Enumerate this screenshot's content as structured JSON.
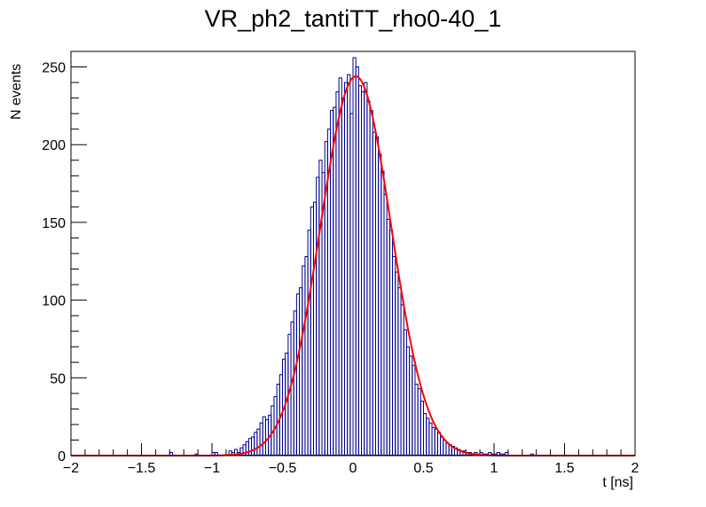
{
  "chart_data": {
    "type": "histogram",
    "title": "VR_ph2_tantiTT_rho0-40_1",
    "xlabel": "t [ns]",
    "ylabel": "N events",
    "xlim": [
      -2,
      2
    ],
    "ylim": [
      0,
      260
    ],
    "x_ticks": [
      -2,
      -1.5,
      -1,
      -0.5,
      0,
      0.5,
      1,
      1.5,
      2
    ],
    "x_tick_labels": [
      "−2",
      "−1.5",
      "−1",
      "−0.5",
      "0",
      "0.5",
      "1",
      "1.5",
      "2"
    ],
    "y_ticks": [
      0,
      50,
      100,
      150,
      200,
      250
    ],
    "y_tick_labels": [
      "0",
      "50",
      "100",
      "150",
      "200",
      "250"
    ],
    "bin_width": 0.02,
    "bin_centers": [
      -1.29,
      -1.11,
      -0.99,
      -0.97,
      -0.87,
      -0.85,
      -0.83,
      -0.81,
      -0.79,
      -0.77,
      -0.75,
      -0.73,
      -0.71,
      -0.69,
      -0.67,
      -0.65,
      -0.63,
      -0.61,
      -0.59,
      -0.57,
      -0.55,
      -0.53,
      -0.51,
      -0.49,
      -0.47,
      -0.45,
      -0.43,
      -0.41,
      -0.39,
      -0.37,
      -0.35,
      -0.33,
      -0.31,
      -0.29,
      -0.27,
      -0.25,
      -0.23,
      -0.21,
      -0.19,
      -0.17,
      -0.15,
      -0.13,
      -0.11,
      -0.09,
      -0.07,
      -0.05,
      -0.03,
      -0.01,
      0.01,
      0.03,
      0.05,
      0.07,
      0.09,
      0.11,
      0.13,
      0.15,
      0.17,
      0.19,
      0.21,
      0.23,
      0.25,
      0.27,
      0.29,
      0.31,
      0.33,
      0.35,
      0.37,
      0.39,
      0.41,
      0.43,
      0.45,
      0.47,
      0.49,
      0.51,
      0.53,
      0.55,
      0.57,
      0.59,
      0.61,
      0.63,
      0.65,
      0.67,
      0.69,
      0.71,
      0.73,
      0.75,
      0.77,
      0.79,
      0.81,
      0.83,
      0.85,
      0.87,
      0.89,
      0.91,
      0.93,
      0.95,
      0.97,
      0.99,
      1.01,
      1.03,
      1.05,
      1.07,
      1.09,
      1.27
    ],
    "counts": [
      2,
      1,
      2,
      2,
      3,
      2,
      4,
      2,
      5,
      7,
      9,
      11,
      12,
      15,
      17,
      21,
      25,
      23,
      26,
      32,
      38,
      46,
      52,
      62,
      66,
      78,
      86,
      93,
      104,
      108,
      122,
      128,
      145,
      160,
      163,
      179,
      190,
      182,
      202,
      210,
      222,
      224,
      234,
      243,
      230,
      240,
      245,
      220,
      256,
      250,
      238,
      234,
      240,
      228,
      222,
      208,
      205,
      194,
      183,
      168,
      152,
      145,
      128,
      118,
      108,
      97,
      81,
      70,
      64,
      58,
      46,
      43,
      35,
      27,
      24,
      21,
      18,
      17,
      15,
      12,
      10,
      8,
      7,
      6,
      5,
      4,
      3,
      3,
      2,
      2,
      1,
      2,
      1,
      2,
      1,
      1,
      2,
      1,
      1,
      2,
      1,
      1,
      2,
      1
    ],
    "series": [
      {
        "name": "",
        "kind": "histogram",
        "color": "#00008b"
      },
      {
        "name": "",
        "kind": "gaussian-fit",
        "color": "#ff0000",
        "amplitude": 244,
        "mean": 0.02,
        "sigma": 0.25
      }
    ]
  }
}
